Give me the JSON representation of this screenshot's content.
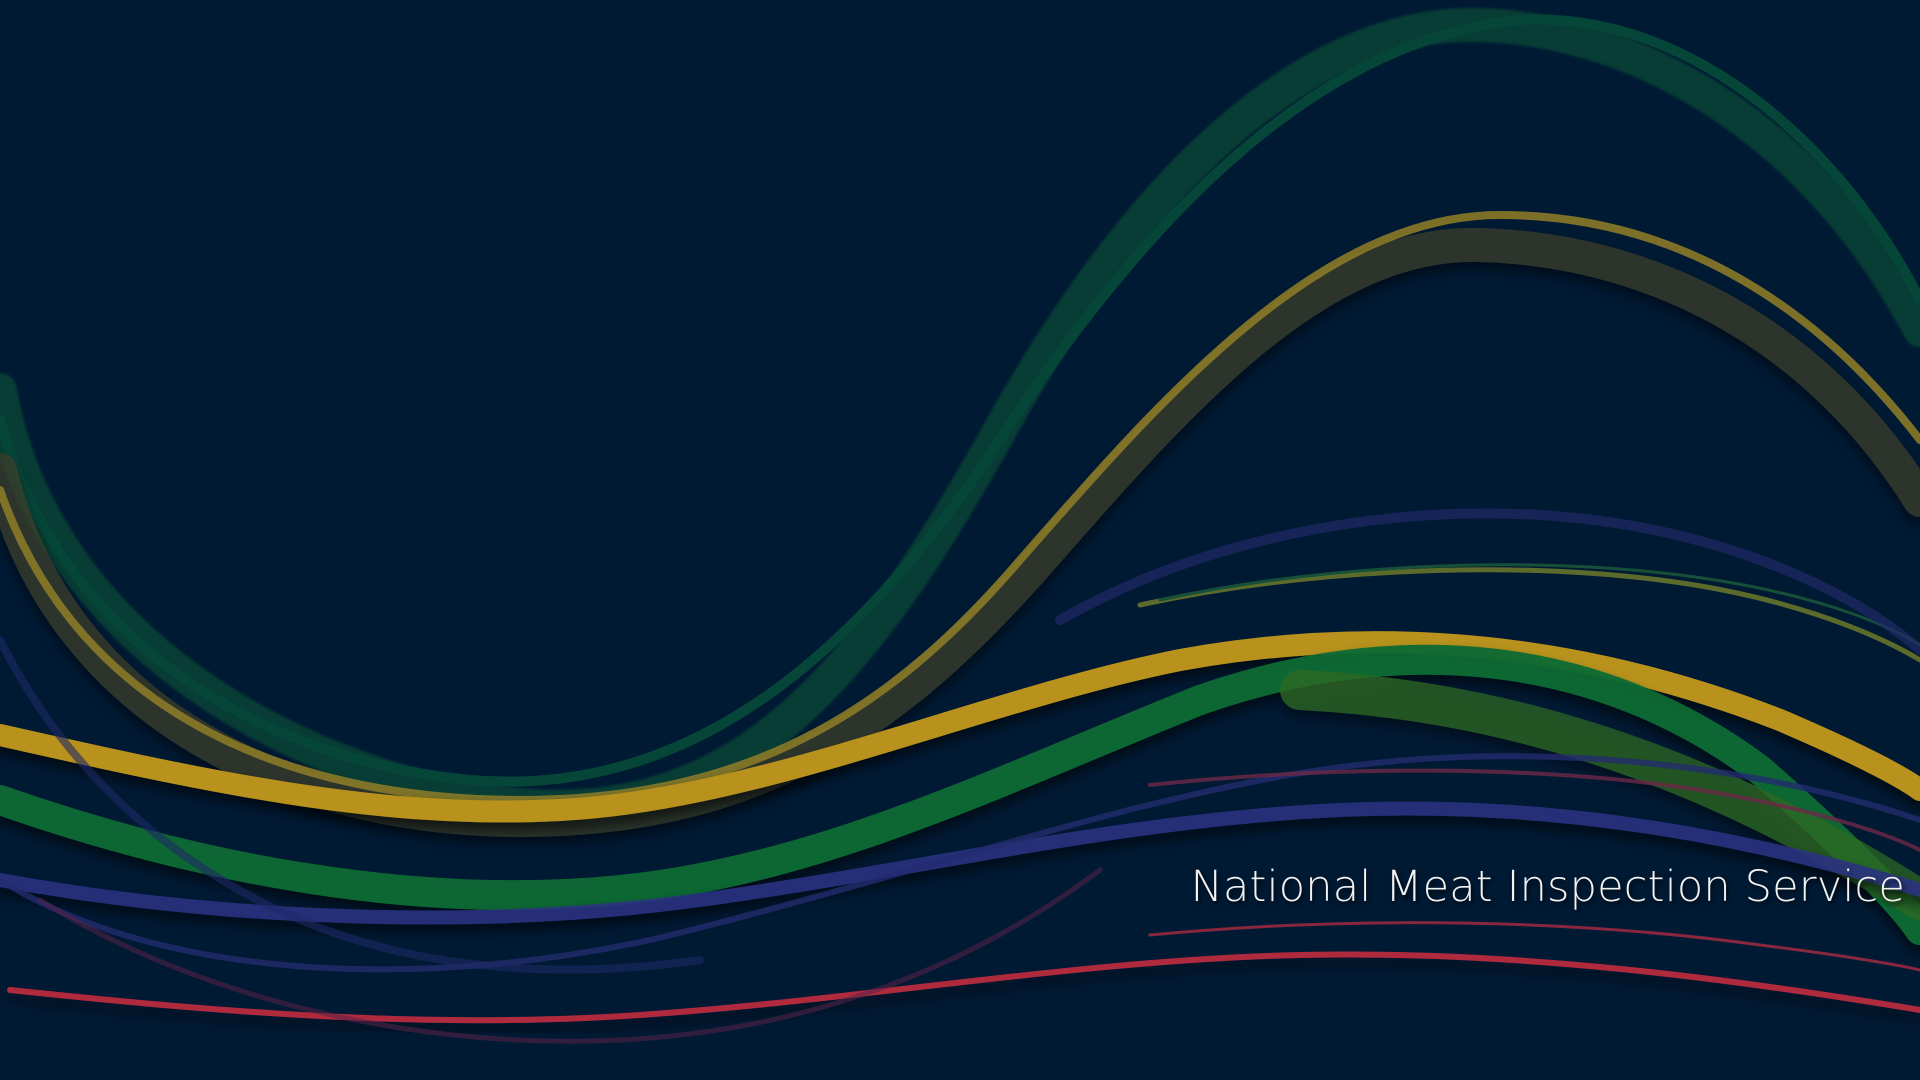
{
  "wallpaper": {
    "caption": "National Meat Inspection Service",
    "background_color": "#011a34",
    "ribbon_colors": {
      "green": "#0a6b3a",
      "gold": "#c9a227",
      "blue": "#2d3d8c",
      "red": "#c0283c",
      "olive": "#4a4a2a"
    }
  }
}
